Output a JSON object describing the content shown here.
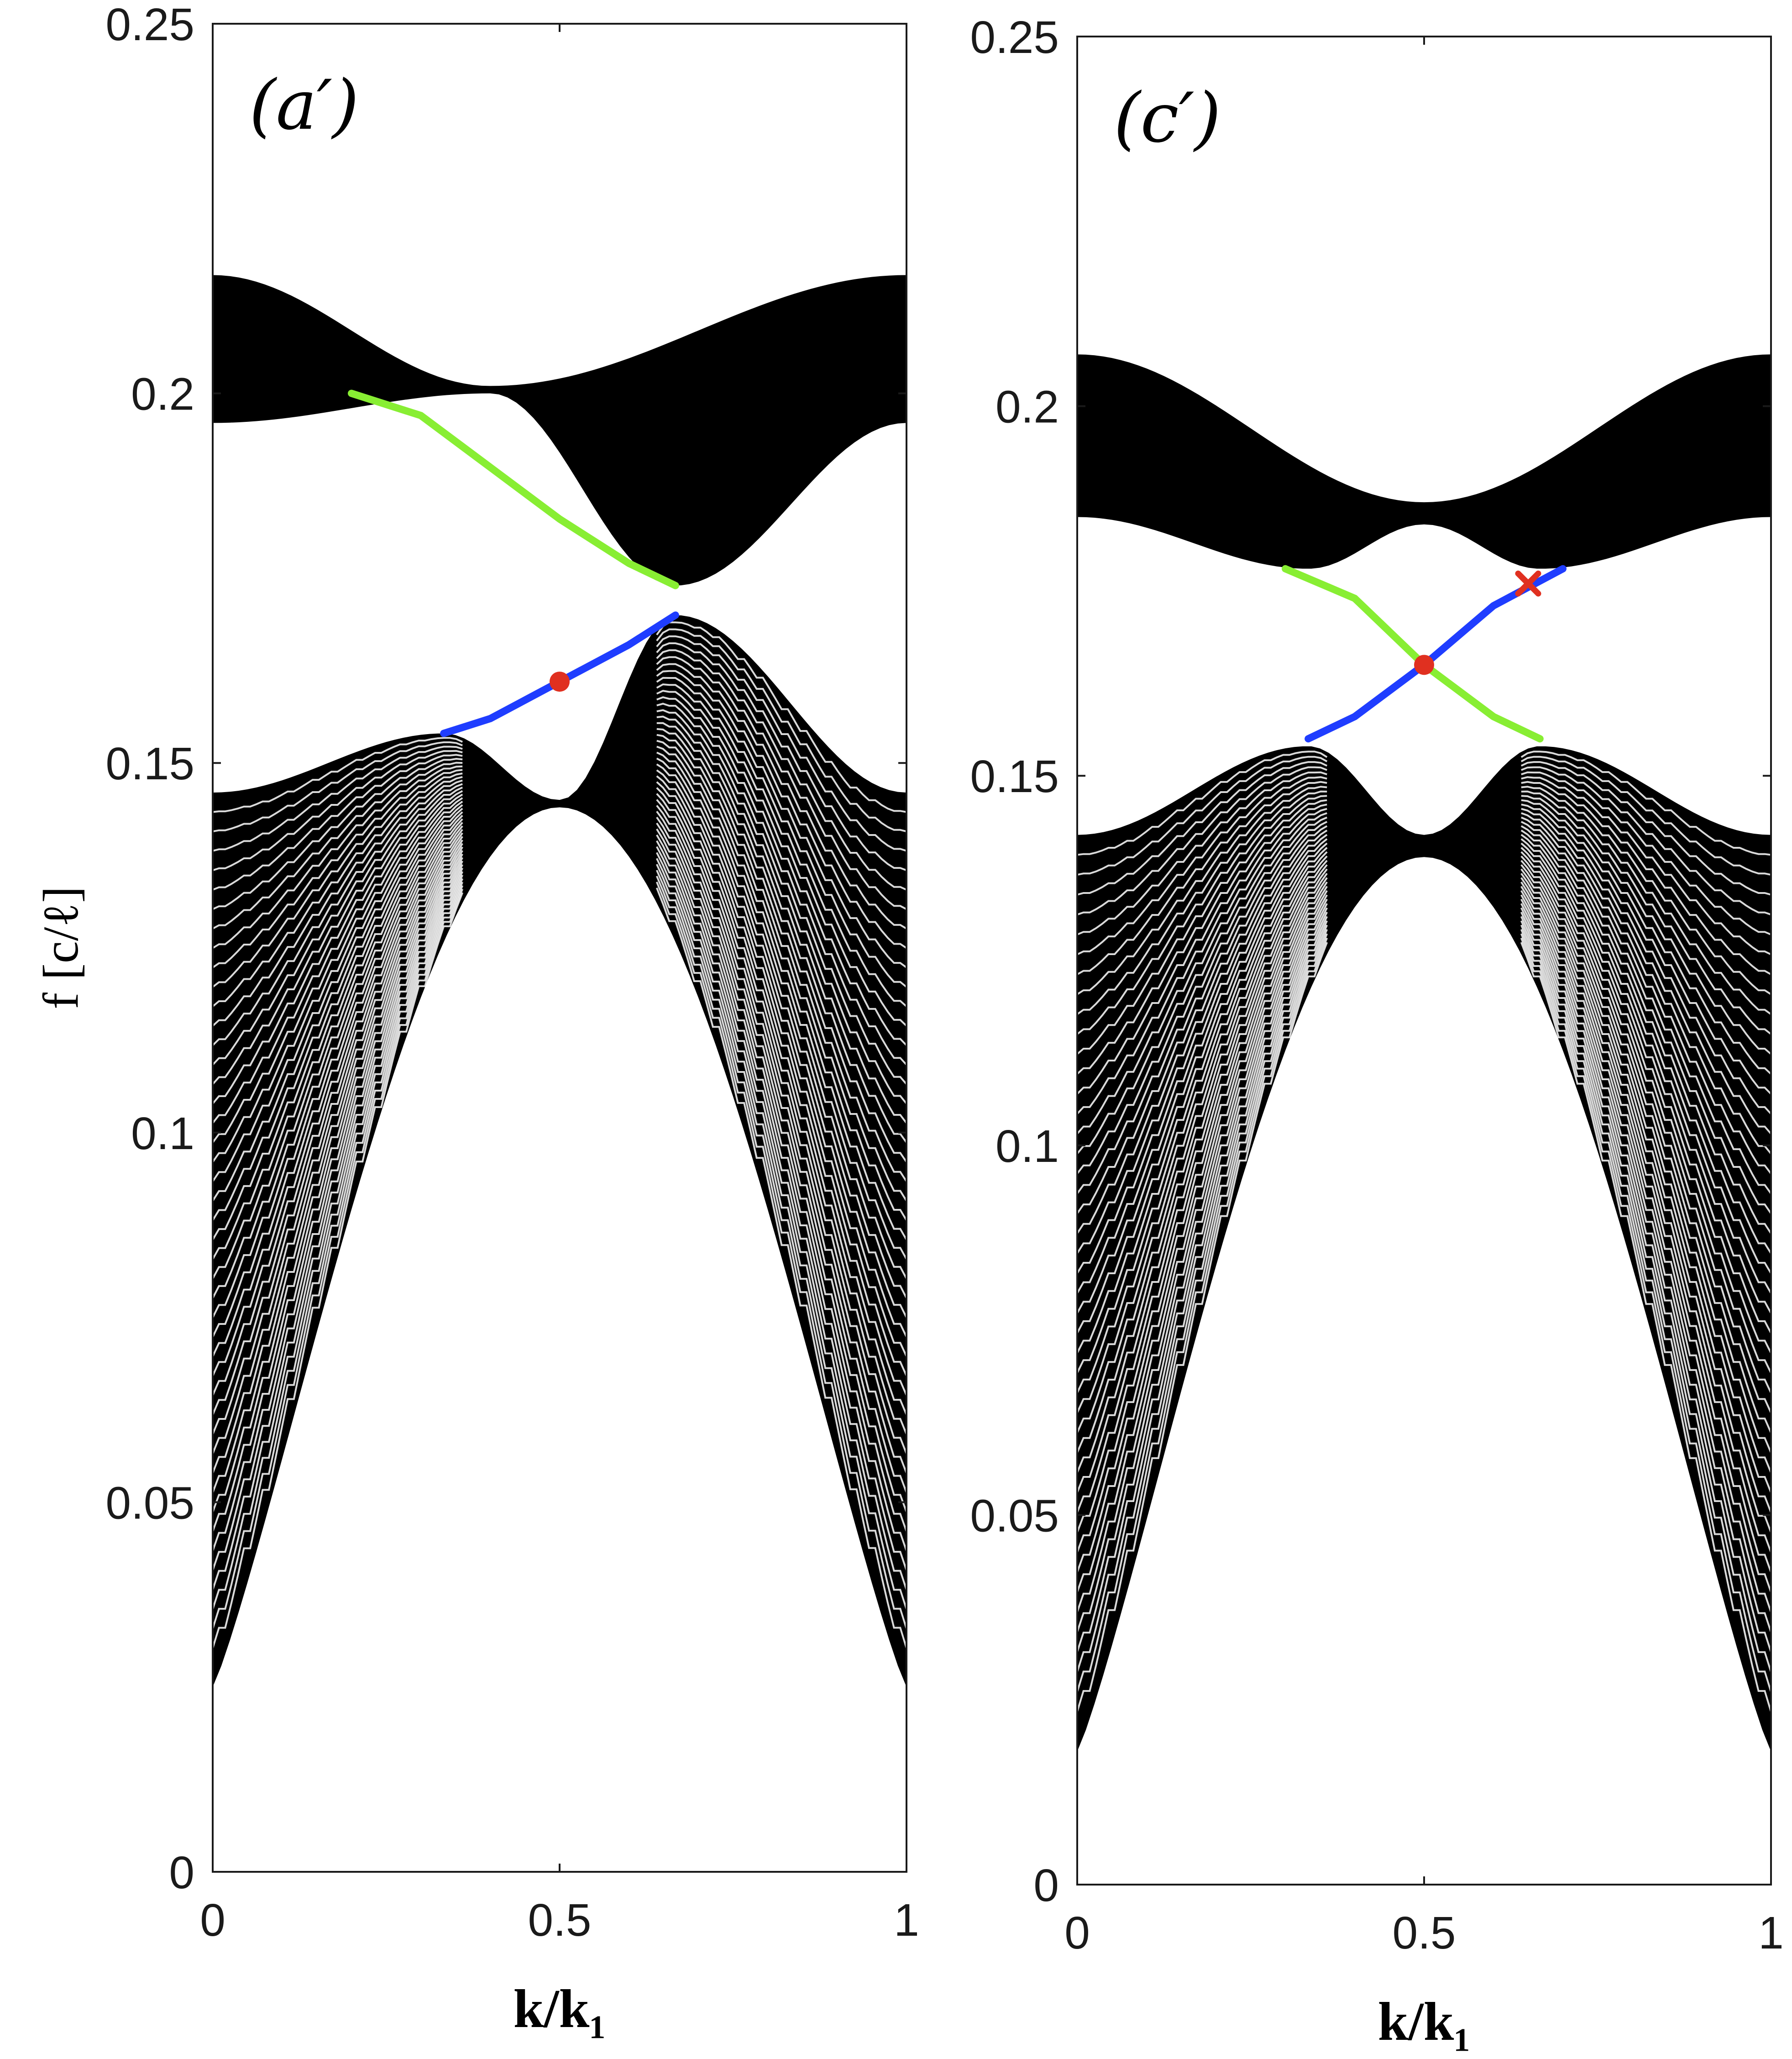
{
  "chart_data": [
    {
      "type": "line",
      "panel_label": "(a′)",
      "xlabel": "k/k₁",
      "ylabel": "f [c/ℓ]",
      "xlim": [
        0,
        1
      ],
      "ylim": [
        0,
        0.25
      ],
      "xticks": [
        "0",
        "0.5",
        "1"
      ],
      "yticks": [
        "0",
        "0.05",
        "0.1",
        "0.15",
        "0.2",
        "0.25"
      ],
      "bands": {
        "lower": {
          "f_min_at_edges": 0.025,
          "f_at_center": 0.145,
          "f_max": 0.154,
          "f_peak_right": 0.17,
          "color": "#000000"
        },
        "upper": {
          "f_max_at_edges": 0.216,
          "f_min_left": 0.196,
          "f_min_right": 0.174,
          "color": "#000000"
        }
      },
      "series": [
        {
          "color": "#88ee33",
          "x": [
            0.2,
            0.3,
            0.4,
            0.5,
            0.6,
            0.667
          ],
          "y": [
            0.2,
            0.197,
            0.19,
            0.183,
            0.177,
            0.174
          ]
        },
        {
          "color": "#1f3dff",
          "x": [
            0.333,
            0.4,
            0.5,
            0.6,
            0.667
          ],
          "y": [
            0.154,
            0.156,
            0.161,
            0.166,
            0.17
          ]
        }
      ],
      "markers": [
        {
          "type": "dot",
          "x": 0.5,
          "y": 0.161,
          "color": "#e03020"
        }
      ]
    },
    {
      "type": "line",
      "panel_label": "(c′)",
      "xlabel": "k/k₁",
      "xlim": [
        0,
        1
      ],
      "ylim": [
        0,
        0.25
      ],
      "xticks": [
        "0",
        "0.5",
        "1"
      ],
      "yticks": [
        "0",
        "0.05",
        "0.1",
        "0.15",
        "0.2",
        "0.25"
      ],
      "bands": {
        "lower": {
          "f_min_at_edges": 0.018,
          "f_at_center": 0.142,
          "f_max": 0.154,
          "f_center_dip": 0.139,
          "color": "#000000"
        },
        "upper": {
          "f_max_at_edges": 0.207,
          "f_min_at_edges": 0.185,
          "f_center_min": 0.187,
          "f_center_lower": 0.184,
          "color": "#000000"
        }
      },
      "series": [
        {
          "color": "#88ee33",
          "x": [
            0.3,
            0.4,
            0.5,
            0.6,
            0.667
          ],
          "y": [
            0.178,
            0.174,
            0.165,
            0.158,
            0.155
          ]
        },
        {
          "color": "#1f3dff",
          "x": [
            0.333,
            0.4,
            0.5,
            0.6,
            0.7
          ],
          "y": [
            0.155,
            0.158,
            0.165,
            0.173,
            0.178
          ]
        }
      ],
      "markers": [
        {
          "type": "dot",
          "x": 0.5,
          "y": 0.165,
          "color": "#e03020"
        },
        {
          "type": "cross",
          "x": 0.65,
          "y": 0.176,
          "color": "#e03020"
        }
      ]
    }
  ]
}
